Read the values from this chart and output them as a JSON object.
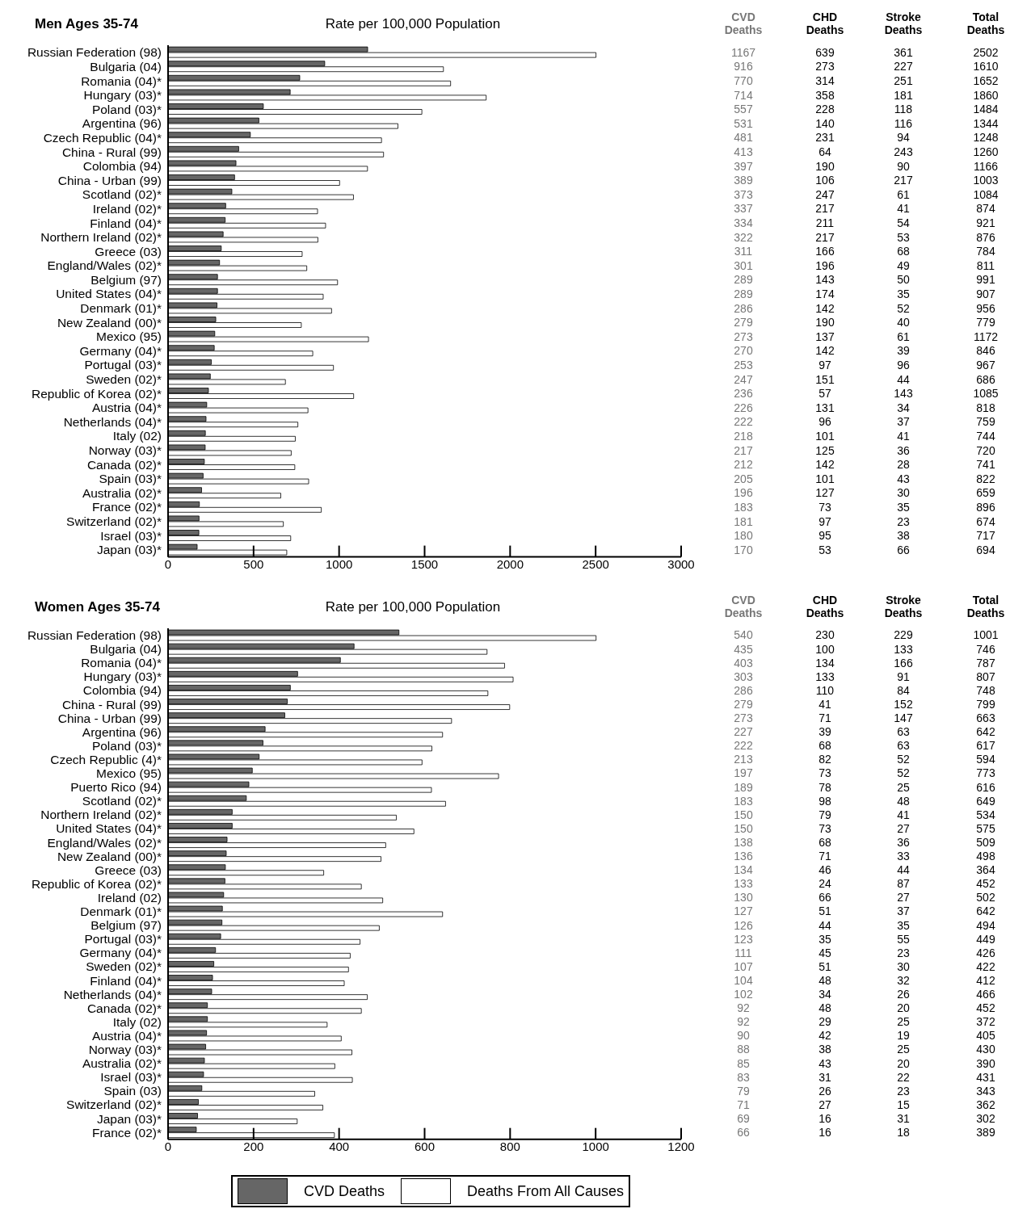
{
  "chart_data": [
    {
      "type": "bar",
      "orientation": "horizontal",
      "title": "Men Ages 35-74",
      "xlabel": "Rate per 100,000 Population",
      "categories": [
        "Russian Federation (98)",
        "Bulgaria (04)",
        "Romania (04)*",
        "Hungary (03)*",
        "Poland (03)*",
        "Argentina (96)",
        "Czech Republic (04)*",
        "China - Rural (99)",
        "Colombia (94)",
        "China - Urban (99)",
        "Scotland (02)*",
        "Ireland (02)*",
        "Finland (04)*",
        "Northern Ireland (02)*",
        "Greece (03)",
        "England/Wales (02)*",
        "Belgium (97)",
        "United States (04)*",
        "Denmark (01)*",
        "New Zealand (00)*",
        "Mexico (95)",
        "Germany (04)*",
        "Portugal (03)*",
        "Sweden (02)*",
        "Republic of Korea (02)*",
        "Austria (04)*",
        "Netherlands (04)*",
        "Italy (02)",
        "Norway (03)*",
        "Canada (02)*",
        "Spain (03)*",
        "Australia (02)*",
        "France (02)*",
        "Switzerland (02)*",
        "Israel (03)*",
        "Japan (03)*"
      ],
      "series": [
        {
          "color": "#666666",
          "values": [
            1167,
            916,
            770,
            714,
            557,
            531,
            481,
            413,
            397,
            389,
            373,
            337,
            334,
            322,
            311,
            301,
            289,
            289,
            286,
            279,
            273,
            270,
            253,
            247,
            236,
            226,
            222,
            218,
            217,
            212,
            205,
            196,
            183,
            181,
            180,
            170
          ]
        },
        {
          "color": "#ffffff",
          "values": [
            2502,
            1610,
            1652,
            1860,
            1484,
            1344,
            1248,
            1260,
            1166,
            1003,
            1084,
            874,
            921,
            876,
            784,
            811,
            991,
            907,
            956,
            779,
            1172,
            846,
            967,
            686,
            1085,
            818,
            759,
            744,
            720,
            741,
            822,
            659,
            896,
            674,
            717,
            694
          ]
        }
      ],
      "xlim": [
        0,
        3000
      ],
      "xticks": [
        0,
        500,
        1000,
        1500,
        2000,
        2500,
        3000
      ]
    },
    {
      "type": "heatmap",
      "data_labels": true,
      "categories": [
        "CVD Deaths",
        "CHD Deaths",
        "Stroke Deaths",
        "Total Deaths"
      ],
      "y_categories": [
        null,
        null,
        null,
        null,
        null,
        null,
        null,
        null,
        null,
        null,
        null,
        null,
        null,
        null,
        null,
        null,
        null,
        null,
        null,
        null,
        null,
        null,
        null,
        null,
        null,
        null,
        null,
        null,
        null,
        null,
        null,
        null,
        null,
        null,
        null,
        null
      ],
      "cells": [
        [
          1167,
          639,
          361,
          2502
        ],
        [
          916,
          273,
          227,
          1610
        ],
        [
          770,
          314,
          251,
          1652
        ],
        [
          714,
          358,
          181,
          1860
        ],
        [
          557,
          228,
          118,
          1484
        ],
        [
          531,
          140,
          116,
          1344
        ],
        [
          481,
          231,
          94,
          1248
        ],
        [
          413,
          64,
          243,
          1260
        ],
        [
          397,
          190,
          90,
          1166
        ],
        [
          389,
          106,
          217,
          1003
        ],
        [
          373,
          247,
          61,
          1084
        ],
        [
          337,
          217,
          41,
          874
        ],
        [
          334,
          211,
          54,
          921
        ],
        [
          322,
          217,
          53,
          876
        ],
        [
          311,
          166,
          68,
          784
        ],
        [
          301,
          196,
          49,
          811
        ],
        [
          289,
          143,
          50,
          991
        ],
        [
          289,
          174,
          35,
          907
        ],
        [
          286,
          142,
          52,
          956
        ],
        [
          279,
          190,
          40,
          779
        ],
        [
          273,
          137,
          61,
          1172
        ],
        [
          270,
          142,
          39,
          846
        ],
        [
          253,
          97,
          96,
          967
        ],
        [
          247,
          151,
          44,
          686
        ],
        [
          236,
          57,
          143,
          1085
        ],
        [
          226,
          131,
          34,
          818
        ],
        [
          222,
          96,
          37,
          759
        ],
        [
          218,
          101,
          41,
          744
        ],
        [
          217,
          125,
          36,
          720
        ],
        [
          212,
          142,
          28,
          741
        ],
        [
          205,
          101,
          43,
          822
        ],
        [
          196,
          127,
          30,
          659
        ],
        [
          183,
          73,
          35,
          896
        ],
        [
          181,
          97,
          23,
          674
        ],
        [
          180,
          95,
          38,
          717
        ],
        [
          170,
          53,
          66,
          694
        ]
      ]
    },
    {
      "type": "bar",
      "orientation": "horizontal",
      "title": "Women Ages 35-74",
      "xlabel": "Rate per 100,000 Population",
      "categories": [
        "Russian Federation (98)",
        "Bulgaria (04)",
        "Romania (04)*",
        "Hungary (03)*",
        "Colombia (94)",
        "China - Rural (99)",
        "China - Urban (99)",
        "Argentina (96)",
        "Poland (03)*",
        "Czech Republic (4)*",
        "Mexico (95)",
        "Puerto Rico (94)",
        "Scotland (02)*",
        "Northern Ireland (02)*",
        "United States (04)*",
        "England/Wales (02)*",
        "New Zealand (00)*",
        "Greece (03)",
        "Republic of Korea (02)*",
        "Ireland (02)",
        "Denmark (01)*",
        "Belgium (97)",
        "Portugal (03)*",
        "Germany (04)*",
        "Sweden (02)*",
        "Finland (04)*",
        "Netherlands (04)*",
        "Canada (02)*",
        "Italy (02)",
        "Austria (04)*",
        "Norway (03)*",
        "Australia (02)*",
        "Israel (03)*",
        "Spain (03)",
        "Switzerland (02)*",
        "Japan (03)*",
        "France (02)*"
      ],
      "series": [
        {
          "name": "CVD Deaths",
          "color": "#666666",
          "values": [
            540,
            435,
            403,
            303,
            286,
            279,
            273,
            227,
            222,
            213,
            197,
            189,
            183,
            150,
            150,
            138,
            136,
            134,
            133,
            130,
            127,
            126,
            123,
            111,
            107,
            104,
            102,
            92,
            92,
            90,
            88,
            85,
            83,
            79,
            71,
            69,
            66
          ]
        },
        {
          "name": "Deaths From All Causes",
          "color": "#ffffff",
          "values": [
            1001,
            746,
            787,
            807,
            748,
            799,
            663,
            642,
            617,
            594,
            773,
            616,
            649,
            534,
            575,
            509,
            498,
            364,
            452,
            502,
            642,
            494,
            449,
            426,
            422,
            412,
            466,
            452,
            372,
            405,
            430,
            390,
            431,
            343,
            362,
            302,
            389
          ]
        }
      ],
      "xlim": [
        0,
        1200
      ],
      "xticks": [
        0,
        200,
        400,
        600,
        800,
        1000,
        1200
      ],
      "legend": "bottom"
    },
    {
      "type": "heatmap",
      "data_labels": true,
      "categories": [
        "CVD Deaths",
        "CHD Deaths",
        "Stroke Deaths",
        "Total Deaths"
      ],
      "y_categories": [
        null,
        null,
        null,
        null,
        null,
        null,
        null,
        null,
        null,
        null,
        null,
        null,
        null,
        null,
        null,
        null,
        null,
        null,
        null,
        null,
        null,
        null,
        null,
        null,
        null,
        null,
        null,
        null,
        null,
        null,
        null,
        null,
        null,
        null,
        null,
        null,
        null
      ],
      "cells": [
        [
          540,
          230,
          229,
          1001
        ],
        [
          435,
          100,
          133,
          746
        ],
        [
          403,
          134,
          166,
          787
        ],
        [
          303,
          133,
          91,
          807
        ],
        [
          286,
          110,
          84,
          748
        ],
        [
          279,
          41,
          152,
          799
        ],
        [
          273,
          71,
          147,
          663
        ],
        [
          227,
          39,
          63,
          642
        ],
        [
          222,
          68,
          63,
          617
        ],
        [
          213,
          82,
          52,
          594
        ],
        [
          197,
          73,
          52,
          773
        ],
        [
          189,
          78,
          25,
          616
        ],
        [
          183,
          98,
          48,
          649
        ],
        [
          150,
          79,
          41,
          534
        ],
        [
          150,
          73,
          27,
          575
        ],
        [
          138,
          68,
          36,
          509
        ],
        [
          136,
          71,
          33,
          498
        ],
        [
          134,
          46,
          44,
          364
        ],
        [
          133,
          24,
          87,
          452
        ],
        [
          130,
          66,
          27,
          502
        ],
        [
          127,
          51,
          37,
          642
        ],
        [
          126,
          44,
          35,
          494
        ],
        [
          123,
          35,
          55,
          449
        ],
        [
          111,
          45,
          23,
          426
        ],
        [
          107,
          51,
          30,
          422
        ],
        [
          104,
          48,
          32,
          412
        ],
        [
          102,
          34,
          26,
          466
        ],
        [
          92,
          48,
          20,
          452
        ],
        [
          92,
          29,
          25,
          372
        ],
        [
          90,
          42,
          19,
          405
        ],
        [
          88,
          38,
          25,
          430
        ],
        [
          85,
          43,
          20,
          390
        ],
        [
          83,
          31,
          22,
          431
        ],
        [
          79,
          26,
          23,
          343
        ],
        [
          71,
          27,
          15,
          362
        ],
        [
          69,
          16,
          31,
          302
        ],
        [
          66,
          16,
          18,
          389
        ]
      ]
    }
  ]
}
